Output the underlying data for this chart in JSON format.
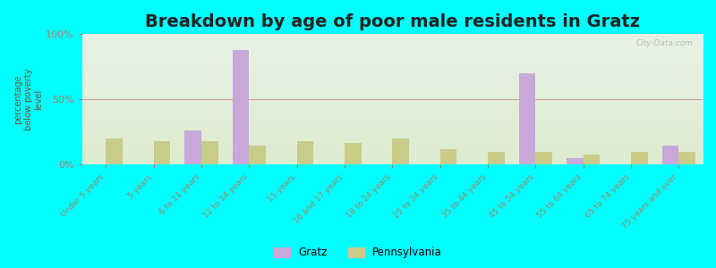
{
  "title": "Breakdown by age of poor male residents in Gratz",
  "ylabel": "percentage\nbelow poverty\nlevel",
  "categories": [
    "Under 5 years",
    "5 years",
    "6 to 11 years",
    "12 to 14 years",
    "15 years",
    "16 and 17 years",
    "18 to 24 years",
    "25 to 34 years",
    "35 to 44 years",
    "45 to 54 years",
    "55 to 64 years",
    "65 to 74 years",
    "75 years and over"
  ],
  "gratz_values": [
    0,
    0,
    26,
    88,
    0,
    0,
    0,
    0,
    0,
    70,
    5,
    0,
    15
  ],
  "pennsylvania_values": [
    20,
    18,
    18,
    15,
    18,
    17,
    20,
    12,
    10,
    10,
    8,
    10,
    10
  ],
  "gratz_color": "#c8a8d8",
  "pennsylvania_color": "#c8cc88",
  "background_color": "#00ffff",
  "ylim": [
    0,
    100
  ],
  "yticks": [
    0,
    50,
    100
  ],
  "ytick_labels": [
    "0%",
    "50%",
    "100%"
  ],
  "bar_width": 0.35,
  "legend_gratz": "Gratz",
  "legend_pennsylvania": "Pennsylvania",
  "title_fontsize": 14,
  "watermark": "City-Data.com"
}
